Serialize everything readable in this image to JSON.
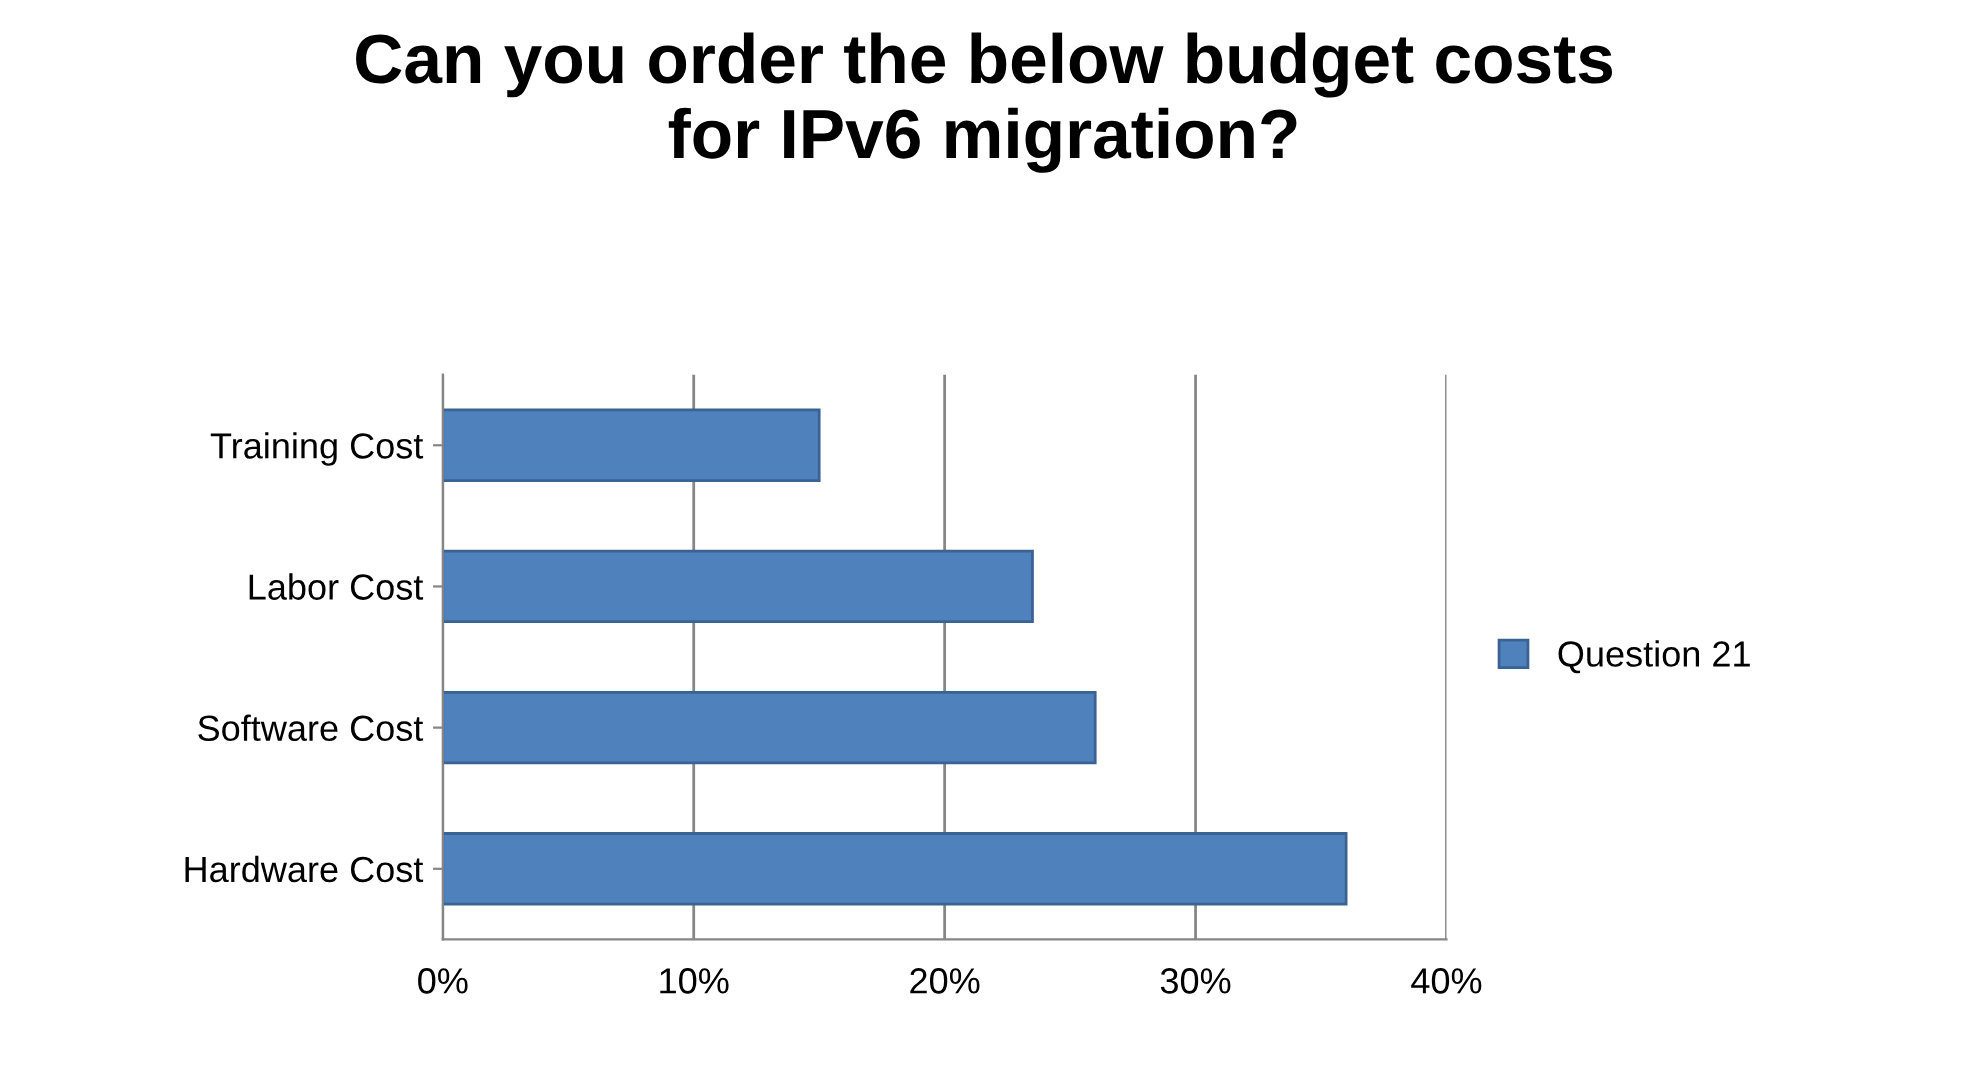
{
  "chart_data": {
    "type": "bar",
    "orientation": "horizontal",
    "title": "Can you order the below budget costs\nfor IPv6 migration?",
    "categories": [
      "Training Cost",
      "Labor Cost",
      "Software Cost",
      "Hardware Cost"
    ],
    "series": [
      {
        "name": "Question 21",
        "color": "#4f81bd",
        "values": [
          15,
          23.5,
          26,
          36
        ]
      }
    ],
    "xlim": [
      0,
      40
    ],
    "xticks": [
      {
        "value": 0,
        "label": "0%"
      },
      {
        "value": 10,
        "label": "10%"
      },
      {
        "value": 20,
        "label": "20%"
      },
      {
        "value": 30,
        "label": "30%"
      },
      {
        "value": 40,
        "label": "40%"
      }
    ],
    "grid": "x",
    "legend": "right"
  }
}
